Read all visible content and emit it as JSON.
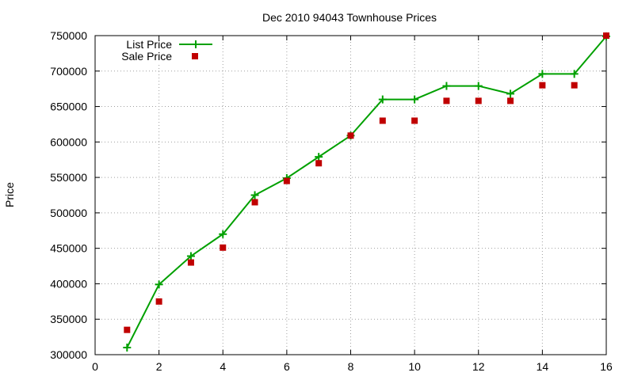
{
  "chart_data": {
    "type": "line",
    "title": "Dec 2010 94043 Townhouse Prices",
    "xlabel": "",
    "ylabel": "Price",
    "xlim": [
      0,
      16
    ],
    "ylim": [
      300000,
      750000
    ],
    "x_ticks": [
      0,
      2,
      4,
      6,
      8,
      10,
      12,
      14,
      16
    ],
    "y_ticks": [
      300000,
      350000,
      400000,
      450000,
      500000,
      550000,
      600000,
      650000,
      700000,
      750000
    ],
    "grid": true,
    "legend_position": "top-left",
    "series": [
      {
        "name": "List Price",
        "style": "line+plus",
        "color": "#00a000",
        "x": [
          1,
          2,
          3,
          4,
          5,
          6,
          7,
          8,
          9,
          10,
          11,
          12,
          13,
          14,
          15,
          16
        ],
        "values": [
          310000,
          399000,
          439000,
          470000,
          525000,
          549000,
          579000,
          609000,
          660000,
          660000,
          679000,
          679000,
          668000,
          696000,
          696000,
          749000
        ]
      },
      {
        "name": "Sale Price",
        "style": "square",
        "color": "#c00000",
        "x": [
          1,
          2,
          3,
          4,
          5,
          6,
          7,
          8,
          9,
          10,
          11,
          12,
          13,
          14,
          15,
          16
        ],
        "values": [
          335000,
          375000,
          430000,
          451000,
          515000,
          545000,
          570000,
          609000,
          630000,
          630000,
          658000,
          658000,
          658000,
          680000,
          680000,
          750000
        ]
      }
    ]
  }
}
